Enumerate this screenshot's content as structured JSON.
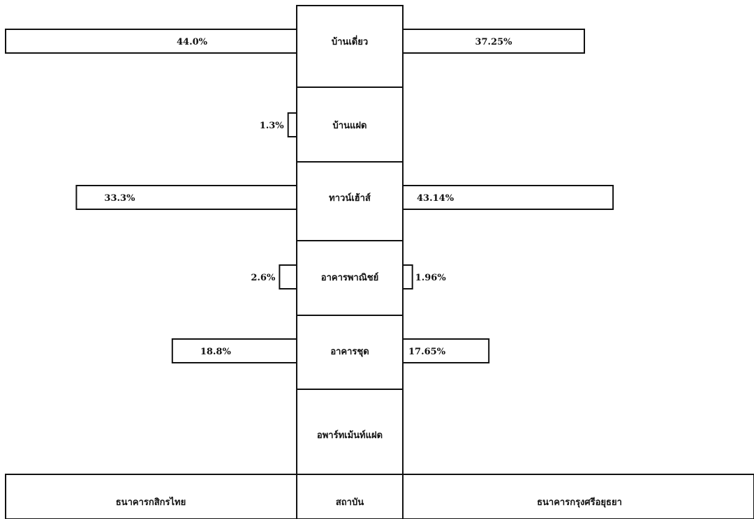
{
  "chart_data": {
    "type": "bar",
    "orientation": "horizontal-butterfly",
    "categories": [
      "บ้านเดี่ยว",
      "บ้านแฝด",
      "ทาวน์เฮ้าส์",
      "อาคารพาณิชย์",
      "อาคารชุด",
      "อพาร์ทเม้นท์แฝด"
    ],
    "center_header": "สถาบัน",
    "series": [
      {
        "name": "ธนาคารกสิกรไทย",
        "side": "left",
        "values": [
          44.0,
          1.3,
          33.3,
          2.6,
          18.8,
          null
        ],
        "labels": [
          "44.0%",
          "1.3%",
          "33.3%",
          "2.6%",
          "18.8%",
          ""
        ]
      },
      {
        "name": "ธนาคารกรุงศรีอยุธยา",
        "side": "right",
        "values": [
          37.25,
          null,
          43.14,
          1.96,
          17.65,
          null
        ],
        "labels": [
          "37.25%",
          "",
          "43.14%",
          "1.96%",
          "17.65%",
          ""
        ]
      }
    ],
    "unit": "%",
    "grid": false,
    "legend": "bottom"
  }
}
